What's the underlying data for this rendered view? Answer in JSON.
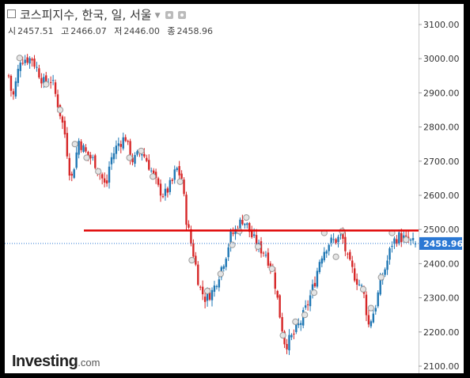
{
  "header": {
    "title": "코스피지수, 한국, 일, 서울",
    "ohlc": [
      {
        "label": "시",
        "value": "2457.51"
      },
      {
        "label": "고",
        "value": "2466.07"
      },
      {
        "label": "저",
        "value": "2446.00"
      },
      {
        "label": "종",
        "value": "2458.96"
      }
    ]
  },
  "brand": {
    "name": "Investing",
    "suffix": ".com"
  },
  "colors": {
    "up": "#1f77b4",
    "down": "#d62728",
    "resistance": "#e00000",
    "price_tag": "#2b78d4"
  },
  "icons": [
    "collapse-box-icon",
    "dropdown-caret-icon",
    "settings-icon",
    "refresh-icon"
  ],
  "chart_data": {
    "type": "candlestick",
    "ylim": [
      2100,
      3100
    ],
    "y_ticks": [
      "3100.00",
      "3000.00",
      "2900.00",
      "2800.00",
      "2700.00",
      "2600.00",
      "2500.00",
      "2400.00",
      "2300.00",
      "2200.00",
      "2100.00"
    ],
    "last_price": 2458.96,
    "last_price_label": "2458.96",
    "resistance_level": 2497,
    "path": [
      [
        0,
        2950
      ],
      [
        5,
        2880
      ],
      [
        15,
        3000
      ],
      [
        30,
        3000
      ],
      [
        45,
        2930
      ],
      [
        55,
        2940
      ],
      [
        65,
        2850
      ],
      [
        72,
        2780
      ],
      [
        80,
        2640
      ],
      [
        90,
        2760
      ],
      [
        100,
        2720
      ],
      [
        110,
        2700
      ],
      [
        118,
        2660
      ],
      [
        125,
        2620
      ],
      [
        130,
        2700
      ],
      [
        140,
        2750
      ],
      [
        150,
        2770
      ],
      [
        155,
        2720
      ],
      [
        160,
        2700
      ],
      [
        170,
        2730
      ],
      [
        178,
        2700
      ],
      [
        185,
        2660
      ],
      [
        192,
        2620
      ],
      [
        200,
        2600
      ],
      [
        210,
        2640
      ],
      [
        215,
        2680
      ],
      [
        222,
        2650
      ],
      [
        228,
        2530
      ],
      [
        233,
        2470
      ],
      [
        238,
        2420
      ],
      [
        245,
        2330
      ],
      [
        252,
        2300
      ],
      [
        262,
        2320
      ],
      [
        270,
        2370
      ],
      [
        278,
        2420
      ],
      [
        285,
        2480
      ],
      [
        292,
        2500
      ],
      [
        300,
        2530
      ],
      [
        306,
        2510
      ],
      [
        312,
        2480
      ],
      [
        320,
        2450
      ],
      [
        330,
        2430
      ],
      [
        340,
        2370
      ],
      [
        348,
        2250
      ],
      [
        355,
        2160
      ],
      [
        365,
        2190
      ],
      [
        375,
        2230
      ],
      [
        385,
        2290
      ],
      [
        393,
        2350
      ],
      [
        400,
        2420
      ],
      [
        410,
        2460
      ],
      [
        420,
        2470
      ],
      [
        428,
        2480
      ],
      [
        435,
        2410
      ],
      [
        445,
        2360
      ],
      [
        455,
        2320
      ],
      [
        462,
        2220
      ],
      [
        470,
        2270
      ],
      [
        478,
        2350
      ],
      [
        485,
        2400
      ],
      [
        492,
        2460
      ],
      [
        500,
        2480
      ],
      [
        510,
        2470
      ],
      [
        518,
        2460
      ],
      [
        522,
        2459
      ]
    ],
    "event_markers": [
      {
        "t": 14,
        "v": 3002
      },
      {
        "t": 48,
        "v": 2925
      },
      {
        "t": 66,
        "v": 2850
      },
      {
        "t": 85,
        "v": 2750
      },
      {
        "t": 100,
        "v": 2710
      },
      {
        "t": 115,
        "v": 2670
      },
      {
        "t": 155,
        "v": 2710
      },
      {
        "t": 170,
        "v": 2730
      },
      {
        "t": 185,
        "v": 2655
      },
      {
        "t": 220,
        "v": 2640
      },
      {
        "t": 235,
        "v": 2410
      },
      {
        "t": 255,
        "v": 2320
      },
      {
        "t": 272,
        "v": 2370
      },
      {
        "t": 287,
        "v": 2455
      },
      {
        "t": 296,
        "v": 2495
      },
      {
        "t": 305,
        "v": 2535
      },
      {
        "t": 320,
        "v": 2450
      },
      {
        "t": 338,
        "v": 2385
      },
      {
        "t": 352,
        "v": 2190
      },
      {
        "t": 368,
        "v": 2230
      },
      {
        "t": 380,
        "v": 2250
      },
      {
        "t": 392,
        "v": 2315
      },
      {
        "t": 405,
        "v": 2490
      },
      {
        "t": 420,
        "v": 2420
      },
      {
        "t": 428,
        "v": 2495
      },
      {
        "t": 455,
        "v": 2325
      },
      {
        "t": 465,
        "v": 2270
      },
      {
        "t": 478,
        "v": 2360
      },
      {
        "t": 492,
        "v": 2490
      },
      {
        "t": 510,
        "v": 2470
      }
    ]
  }
}
